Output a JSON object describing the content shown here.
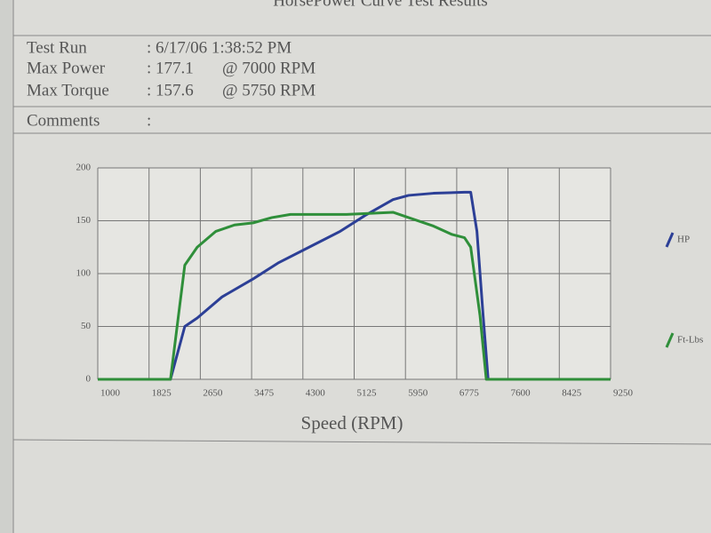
{
  "header": {
    "title": "HorsePower Curve Test Results",
    "fields": [
      {
        "label": "Test Run",
        "value": ": 6/17/06 1:38:52 PM"
      },
      {
        "label": "Max Power",
        "value": ": 177.1",
        "at": "@ 7000 RPM"
      },
      {
        "label": "Max Torque",
        "value": ": 157.6",
        "at": "@ 5750 RPM"
      },
      {
        "label": "Comments",
        "value": ":"
      }
    ]
  },
  "chart_data": {
    "type": "line",
    "xlabel": "Speed (RPM)",
    "xlim": [
      1000,
      9250
    ],
    "xticks": [
      1000,
      1825,
      2650,
      3475,
      4300,
      5125,
      5950,
      6775,
      7600,
      8425,
      9250
    ],
    "ylim": [
      0,
      200
    ],
    "yticks": [
      0,
      50,
      100,
      150,
      200
    ],
    "grid": true,
    "legend": "right",
    "series": [
      {
        "name": "HP",
        "color": "#2c3f96",
        "x": [
          1000,
          2170,
          2400,
          2600,
          3000,
          3500,
          3900,
          4400,
          4900,
          5300,
          5750,
          6000,
          6400,
          6900,
          7000,
          7100,
          7200,
          7280,
          9250
        ],
        "values": [
          0,
          0,
          50,
          58,
          78,
          95,
          110,
          125,
          140,
          155,
          170,
          174,
          176,
          177,
          177,
          140,
          60,
          0,
          0
        ]
      },
      {
        "name": "Ft-Lbs",
        "color": "#2f8f3a",
        "x": [
          1000,
          2170,
          2400,
          2600,
          2900,
          3200,
          3500,
          3800,
          4100,
          4500,
          5000,
          5400,
          5750,
          6000,
          6400,
          6700,
          6900,
          7000,
          7150,
          7250,
          9250
        ],
        "values": [
          0,
          0,
          108,
          125,
          140,
          146,
          148,
          153,
          156,
          156,
          156,
          157,
          158,
          153,
          145,
          137,
          134,
          125,
          60,
          0,
          0
        ]
      }
    ]
  }
}
